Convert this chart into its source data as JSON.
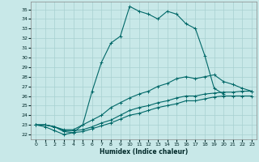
{
  "xlabel": "Humidex (Indice chaleur)",
  "background_color": "#c8e8e8",
  "line_color": "#006868",
  "grid_color": "#a8d0d0",
  "xlim": [
    -0.5,
    23.5
  ],
  "ylim": [
    21.5,
    35.8
  ],
  "xticks": [
    0,
    1,
    2,
    3,
    4,
    5,
    6,
    7,
    8,
    9,
    10,
    11,
    12,
    13,
    14,
    15,
    16,
    17,
    18,
    19,
    20,
    21,
    22,
    23
  ],
  "yticks": [
    22,
    23,
    24,
    25,
    26,
    27,
    28,
    29,
    30,
    31,
    32,
    33,
    34,
    35
  ],
  "curves": [
    {
      "x": [
        0,
        1,
        2,
        3,
        4,
        5,
        6,
        7,
        8,
        9,
        10,
        11,
        12,
        13,
        14,
        15,
        16,
        17,
        18,
        19,
        20
      ],
      "y": [
        23,
        22.8,
        22.4,
        22.0,
        22.2,
        23.0,
        26.5,
        29.5,
        31.5,
        32.2,
        35.3,
        34.8,
        34.5,
        34.0,
        34.8,
        34.5,
        33.5,
        33.0,
        30.2,
        26.8,
        26.2
      ]
    },
    {
      "x": [
        0,
        1,
        2,
        3,
        4,
        5,
        6,
        7,
        8,
        9,
        10,
        11,
        12,
        13,
        14,
        15,
        16,
        17,
        18,
        19,
        20,
        21,
        22,
        23
      ],
      "y": [
        23,
        23,
        22.8,
        22.5,
        22.5,
        23.0,
        23.5,
        24.0,
        24.8,
        25.3,
        25.8,
        26.2,
        26.5,
        27.0,
        27.3,
        27.8,
        28.0,
        27.8,
        28.0,
        28.2,
        27.5,
        27.2,
        26.8,
        26.5
      ]
    },
    {
      "x": [
        0,
        1,
        2,
        3,
        4,
        5,
        6,
        7,
        8,
        9,
        10,
        11,
        12,
        13,
        14,
        15,
        16,
        17,
        18,
        19,
        20,
        21,
        22,
        23
      ],
      "y": [
        23,
        23,
        22.8,
        22.4,
        22.4,
        22.5,
        22.8,
        23.2,
        23.5,
        24.0,
        24.5,
        24.8,
        25.0,
        25.3,
        25.5,
        25.8,
        26.0,
        26.0,
        26.2,
        26.3,
        26.4,
        26.4,
        26.5,
        26.5
      ]
    },
    {
      "x": [
        0,
        1,
        2,
        3,
        4,
        5,
        6,
        7,
        8,
        9,
        10,
        11,
        12,
        13,
        14,
        15,
        16,
        17,
        18,
        19,
        20,
        21,
        22,
        23
      ],
      "y": [
        23,
        23,
        22.8,
        22.3,
        22.2,
        22.3,
        22.6,
        22.9,
        23.2,
        23.6,
        24.0,
        24.2,
        24.5,
        24.8,
        25.0,
        25.2,
        25.5,
        25.5,
        25.7,
        25.9,
        26.0,
        26.0,
        26.0,
        26.0
      ]
    }
  ]
}
